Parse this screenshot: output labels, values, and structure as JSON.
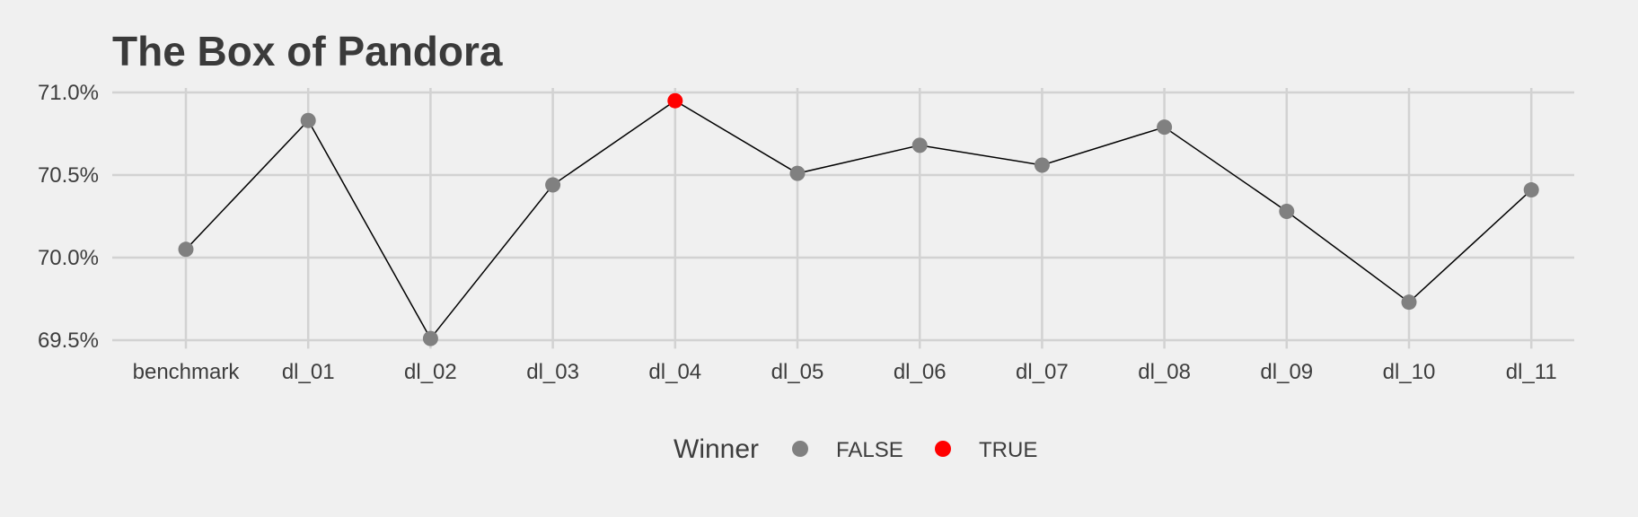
{
  "chart_data": {
    "type": "line",
    "title": "The Box of Pandora",
    "xlabel": "",
    "ylabel": "",
    "categories": [
      "benchmark",
      "dl_01",
      "dl_02",
      "dl_03",
      "dl_04",
      "dl_05",
      "dl_06",
      "dl_07",
      "dl_08",
      "dl_09",
      "dl_10",
      "dl_11"
    ],
    "values": [
      70.05,
      70.83,
      69.51,
      70.44,
      70.95,
      70.51,
      70.68,
      70.56,
      70.79,
      70.28,
      69.73,
      70.41
    ],
    "winner": [
      false,
      false,
      false,
      false,
      true,
      false,
      false,
      false,
      false,
      false,
      false,
      false
    ],
    "ylim": [
      69.46,
      71.0
    ],
    "yticks": [
      69.5,
      70.0,
      70.5,
      71.0
    ],
    "ytick_labels": [
      "69.5%",
      "70.0%",
      "70.5%",
      "71.0%"
    ],
    "grid": true,
    "legend": {
      "title": "Winner",
      "position": "bottom",
      "entries": [
        {
          "label": "FALSE",
          "color": "#808080"
        },
        {
          "label": "TRUE",
          "color": "#ff0000"
        }
      ]
    },
    "colors": {
      "background": "#f0f0f0",
      "grid": "#d2d2d2",
      "line": "#000000",
      "point_false": "#808080",
      "point_true": "#ff0000"
    }
  }
}
